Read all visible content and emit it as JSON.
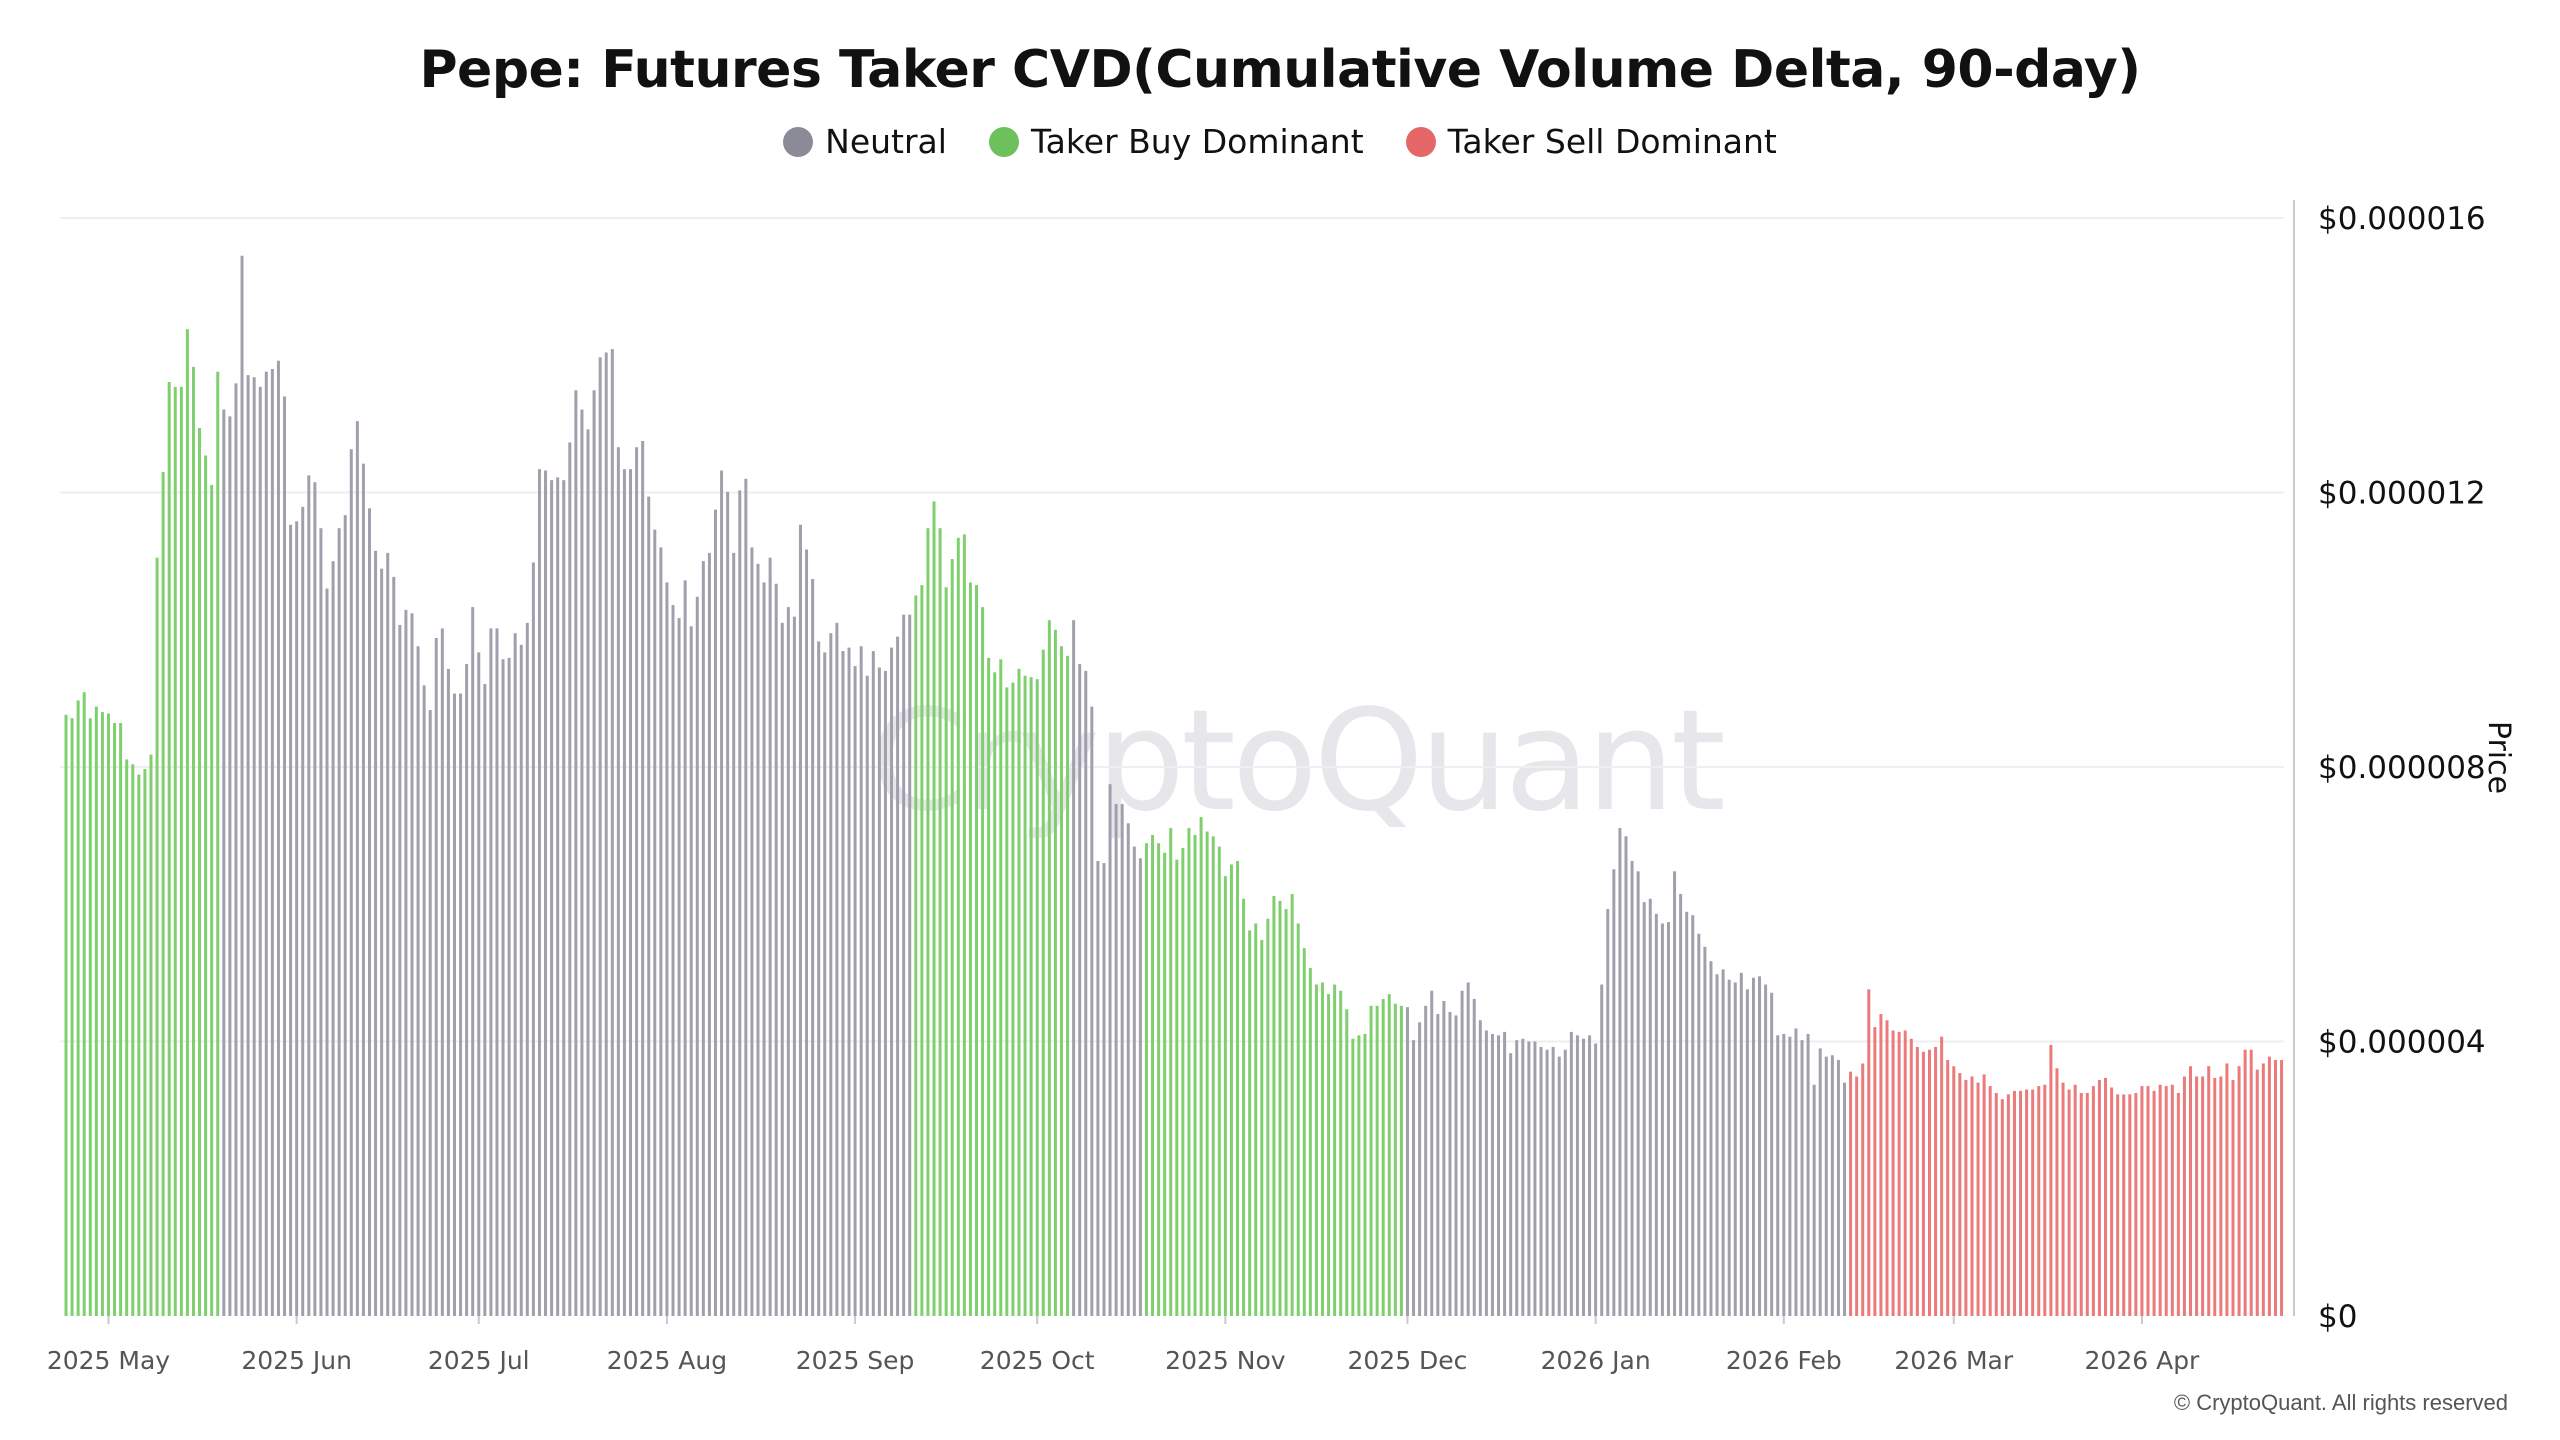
{
  "chart_data": {
    "type": "bar",
    "title": "Pepe: Futures Taker CVD(Cumulative Volume Delta, 90-day)",
    "ylabel": "Price",
    "xlabel": "",
    "ylim": [
      0,
      1.6e-05
    ],
    "y_ticks": [
      "$0",
      "$0.000004",
      "$0.000008",
      "$0.000012",
      "$0.000016"
    ],
    "y_tick_values": [
      0,
      4e-06,
      8e-06,
      1.2e-05,
      1.6e-05
    ],
    "grid": true,
    "legend_position": "top-center",
    "legend": [
      {
        "name": "Neutral",
        "color": "#8b8b97"
      },
      {
        "name": "Taker Buy Dominant",
        "color": "#6cc15c"
      },
      {
        "name": "Taker Sell Dominant",
        "color": "#e56767"
      }
    ],
    "bar_colors": {
      "Neutral": "#a0a0ac",
      "Taker Buy Dominant": "#80cf6e",
      "Taker Sell Dominant": "#ec7a7a"
    },
    "x_start": "2025-04-24",
    "x_interval": "1 day",
    "segments": [
      {
        "from": "2025-04-24",
        "to": "2025-05-19",
        "category": "Taker Buy Dominant"
      },
      {
        "from": "2025-05-20",
        "to": "2025-09-10",
        "category": "Neutral"
      },
      {
        "from": "2025-09-11",
        "to": "2025-10-06",
        "category": "Taker Buy Dominant"
      },
      {
        "from": "2025-10-07",
        "to": "2025-10-18",
        "category": "Neutral"
      },
      {
        "from": "2025-10-19",
        "to": "2025-11-30",
        "category": "Taker Buy Dominant"
      },
      {
        "from": "2025-12-01",
        "to": "2026-02-11",
        "category": "Neutral"
      },
      {
        "from": "2026-02-12",
        "to": "2026-04-23",
        "category": "Taker Sell Dominant"
      }
    ],
    "x_ticks": [
      {
        "label": "2025 May",
        "date": "2025-05-01"
      },
      {
        "label": "2025 Jun",
        "date": "2025-06-01"
      },
      {
        "label": "2025 Jul",
        "date": "2025-07-01"
      },
      {
        "label": "2025 Aug",
        "date": "2025-08-01"
      },
      {
        "label": "2025 Sep",
        "date": "2025-09-01"
      },
      {
        "label": "2025 Oct",
        "date": "2025-10-01"
      },
      {
        "label": "2025 Nov",
        "date": "2025-11-01"
      },
      {
        "label": "2025 Dec",
        "date": "2025-12-01"
      },
      {
        "label": "2026 Jan",
        "date": "2026-01-01"
      },
      {
        "label": "2026 Feb",
        "date": "2026-02-01"
      },
      {
        "label": "2026 Mar",
        "date": "2026-03-01"
      },
      {
        "label": "2026 Apr",
        "date": "2026-04-01"
      }
    ],
    "values": [
      8.76e-06,
      8.71e-06,
      8.97e-06,
      9.09e-06,
      8.71e-06,
      8.88e-06,
      8.8e-06,
      8.78e-06,
      8.64e-06,
      8.64e-06,
      8.11e-06,
      8.04e-06,
      7.89e-06,
      7.97e-06,
      8.18e-06,
      1.105e-05,
      1.23e-05,
      1.361e-05,
      1.354e-05,
      1.354e-05,
      1.438e-05,
      1.383e-05,
      1.294e-05,
      1.254e-05,
      1.211e-05,
      1.376e-05,
      1.321e-05,
      1.311e-05,
      1.359e-05,
      1.545e-05,
      1.371e-05,
      1.368e-05,
      1.354e-05,
      1.376e-05,
      1.38e-05,
      1.392e-05,
      1.34e-05,
      1.153e-05,
      1.158e-05,
      1.179e-05,
      1.225e-05,
      1.215e-05,
      1.148e-05,
      1.06e-05,
      1.1e-05,
      1.148e-05,
      1.167e-05,
      1.263e-05,
      1.304e-05,
      1.242e-05,
      1.177e-05,
      1.115e-05,
      1.089e-05,
      1.112e-05,
      1.077e-05,
      1.007e-05,
      1.029e-05,
      1.024e-05,
      9.76e-06,
      9.19e-06,
      8.83e-06,
      9.88e-06,
      1.002e-05,
      9.43e-06,
      9.07e-06,
      9.07e-06,
      9.5e-06,
      1.033e-05,
      9.67e-06,
      9.21e-06,
      1.002e-05,
      1.002e-05,
      9.57e-06,
      9.59e-06,
      9.95e-06,
      9.78e-06,
      1.01e-05,
      1.098e-05,
      1.234e-05,
      1.232e-05,
      1.218e-05,
      1.222e-05,
      1.218e-05,
      1.273e-05,
      1.349e-05,
      1.321e-05,
      1.292e-05,
      1.349e-05,
      1.397e-05,
      1.404e-05,
      1.409e-05,
      1.266e-05,
      1.234e-05,
      1.234e-05,
      1.266e-05,
      1.275e-05,
      1.194e-05,
      1.146e-05,
      1.12e-05,
      1.069e-05,
      1.036e-05,
      1.017e-05,
      1.072e-05,
      1.005e-05,
      1.048e-05,
      1.1e-05,
      1.112e-05,
      1.175e-05,
      1.232e-05,
      1.201e-05,
      1.112e-05,
      1.203e-05,
      1.22e-05,
      1.12e-05,
      1.096e-05,
      1.069e-05,
      1.105e-05,
      1.067e-05,
      1.01e-05,
      1.033e-05,
      1.019e-05,
      1.153e-05,
      1.117e-05,
      1.074e-05,
      9.83e-06,
      9.67e-06,
      9.95e-06,
      1.01e-05,
      9.69e-06,
      9.74e-06,
      9.47e-06,
      9.76e-06,
      9.33e-06,
      9.69e-06,
      9.45e-06,
      9.4e-06,
      9.74e-06,
      9.9e-06,
      1.022e-05,
      1.022e-05,
      1.05e-05,
      1.065e-05,
      1.148e-05,
      1.187e-05,
      1.148e-05,
      1.062e-05,
      1.103e-05,
      1.134e-05,
      1.139e-05,
      1.069e-05,
      1.065e-05,
      1.033e-05,
      9.59e-06,
      9.38e-06,
      9.57e-06,
      9.16e-06,
      9.23e-06,
      9.43e-06,
      9.33e-06,
      9.31e-06,
      9.28e-06,
      9.71e-06,
      1.014e-05,
      1e-05,
      9.76e-06,
      9.62e-06,
      1.014e-05,
      9.5e-06,
      9.4e-06,
      8.88e-06,
      6.63e-06,
      6.6e-06,
      7.75e-06,
      7.46e-06,
      7.46e-06,
      7.18e-06,
      6.84e-06,
      6.67e-06,
      6.89e-06,
      7.01e-06,
      6.89e-06,
      6.75e-06,
      7.11e-06,
      6.65e-06,
      6.82e-06,
      7.11e-06,
      7.01e-06,
      7.27e-06,
      7.06e-06,
      6.99e-06,
      6.84e-06,
      6.41e-06,
      6.58e-06,
      6.63e-06,
      6.08e-06,
      5.62e-06,
      5.72e-06,
      5.48e-06,
      5.79e-06,
      6.12e-06,
      6.05e-06,
      5.93e-06,
      6.15e-06,
      5.72e-06,
      5.36e-06,
      5.07e-06,
      4.83e-06,
      4.86e-06,
      4.69e-06,
      4.83e-06,
      4.74e-06,
      4.47e-06,
      4.04e-06,
      4.09e-06,
      4.11e-06,
      4.52e-06,
      4.52e-06,
      4.62e-06,
      4.69e-06,
      4.55e-06,
      4.52e-06,
      4.5e-06,
      4.02e-06,
      4.28e-06,
      4.52e-06,
      4.74e-06,
      4.4e-06,
      4.59e-06,
      4.43e-06,
      4.38e-06,
      4.74e-06,
      4.86e-06,
      4.62e-06,
      4.31e-06,
      4.16e-06,
      4.11e-06,
      4.09e-06,
      4.14e-06,
      3.83e-06,
      4.02e-06,
      4.04e-06,
      4e-06,
      4e-06,
      3.92e-06,
      3.88e-06,
      3.92e-06,
      3.78e-06,
      3.88e-06,
      4.14e-06,
      4.09e-06,
      4.04e-06,
      4.09e-06,
      3.97e-06,
      4.83e-06,
      5.93e-06,
      6.51e-06,
      7.11e-06,
      6.99e-06,
      6.63e-06,
      6.48e-06,
      6.03e-06,
      6.08e-06,
      5.86e-06,
      5.72e-06,
      5.74e-06,
      6.48e-06,
      6.15e-06,
      5.89e-06,
      5.84e-06,
      5.57e-06,
      5.38e-06,
      5.17e-06,
      4.98e-06,
      5.05e-06,
      4.9e-06,
      4.86e-06,
      5e-06,
      4.76e-06,
      4.93e-06,
      4.95e-06,
      4.83e-06,
      4.71e-06,
      4.09e-06,
      4.11e-06,
      4.07e-06,
      4.19e-06,
      4.02e-06,
      4.11e-06,
      3.37e-06,
      3.9e-06,
      3.78e-06,
      3.8e-06,
      3.73e-06,
      3.4e-06,
      3.56e-06,
      3.49e-06,
      3.68e-06,
      4.76e-06,
      4.21e-06,
      4.4e-06,
      4.31e-06,
      4.16e-06,
      4.14e-06,
      4.16e-06,
      4.04e-06,
      3.92e-06,
      3.85e-06,
      3.88e-06,
      3.92e-06,
      4.07e-06,
      3.73e-06,
      3.64e-06,
      3.54e-06,
      3.44e-06,
      3.49e-06,
      3.4e-06,
      3.52e-06,
      3.35e-06,
      3.25e-06,
      3.16e-06,
      3.23e-06,
      3.28e-06,
      3.28e-06,
      3.3e-06,
      3.3e-06,
      3.35e-06,
      3.37e-06,
      3.95e-06,
      3.61e-06,
      3.4e-06,
      3.3e-06,
      3.37e-06,
      3.25e-06,
      3.25e-06,
      3.35e-06,
      3.44e-06,
      3.47e-06,
      3.33e-06,
      3.23e-06,
      3.23e-06,
      3.23e-06,
      3.25e-06,
      3.35e-06,
      3.35e-06,
      3.28e-06,
      3.37e-06,
      3.35e-06,
      3.37e-06,
      3.25e-06,
      3.49e-06,
      3.64e-06,
      3.49e-06,
      3.49e-06,
      3.64e-06,
      3.47e-06,
      3.49e-06,
      3.68e-06,
      3.44e-06,
      3.64e-06,
      3.88e-06,
      3.88e-06,
      3.59e-06,
      3.68e-06,
      3.78e-06,
      3.73e-06,
      3.73e-06
    ]
  },
  "watermark": "CryptoQuant",
  "copyright": "© CryptoQuant. All rights reserved"
}
